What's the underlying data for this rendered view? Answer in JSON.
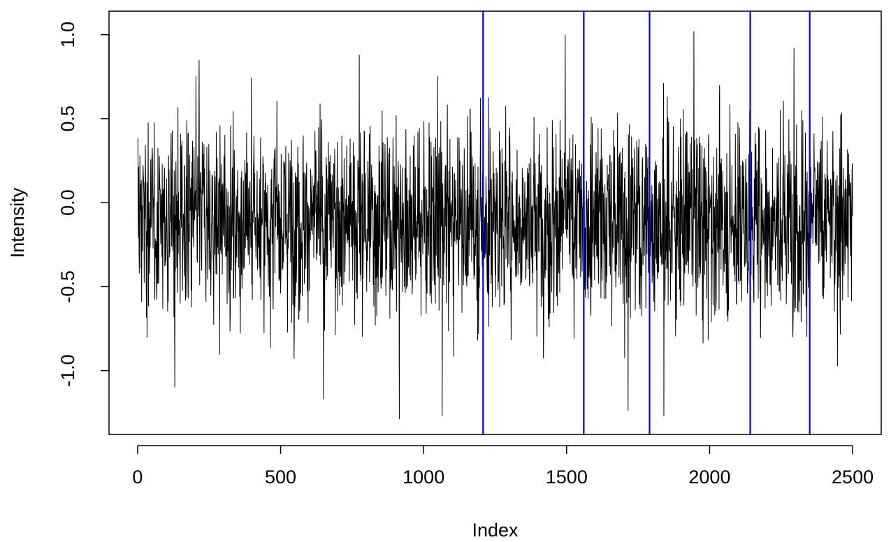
{
  "chart_data": {
    "type": "line",
    "title": "",
    "xlabel": "Index",
    "ylabel": "Intensity",
    "xlim": [
      -100,
      2600
    ],
    "ylim": [
      -1.38,
      1.14
    ],
    "x_ticks": [
      0,
      500,
      1000,
      1500,
      2000,
      2500
    ],
    "x_tick_labels": [
      "0",
      "500",
      "1000",
      "1500",
      "2000",
      "2500"
    ],
    "y_ticks": [
      -1.0,
      -0.5,
      0.0,
      0.5,
      1.0
    ],
    "y_tick_labels": [
      "-1.0",
      "-0.5",
      "0.0",
      "0.5",
      "1.0"
    ],
    "grid": false,
    "series": [
      {
        "color": "#000000",
        "n_points": 2500,
        "mean": -0.1,
        "sd": 0.3,
        "extremes": [
          {
            "x": 130,
            "y": -1.1
          },
          {
            "x": 215,
            "y": 0.85
          },
          {
            "x": 650,
            "y": -1.17
          },
          {
            "x": 775,
            "y": 0.88
          },
          {
            "x": 915,
            "y": -1.29
          },
          {
            "x": 1065,
            "y": -1.27
          },
          {
            "x": 1495,
            "y": 1.0
          },
          {
            "x": 1715,
            "y": -1.24
          },
          {
            "x": 1840,
            "y": -1.27
          },
          {
            "x": 1945,
            "y": 1.05
          },
          {
            "x": 2295,
            "y": 0.92
          }
        ]
      }
    ],
    "vertical_lines": {
      "color": "#0000ee",
      "x": [
        1208,
        1560,
        1790,
        2142,
        2350
      ]
    }
  }
}
